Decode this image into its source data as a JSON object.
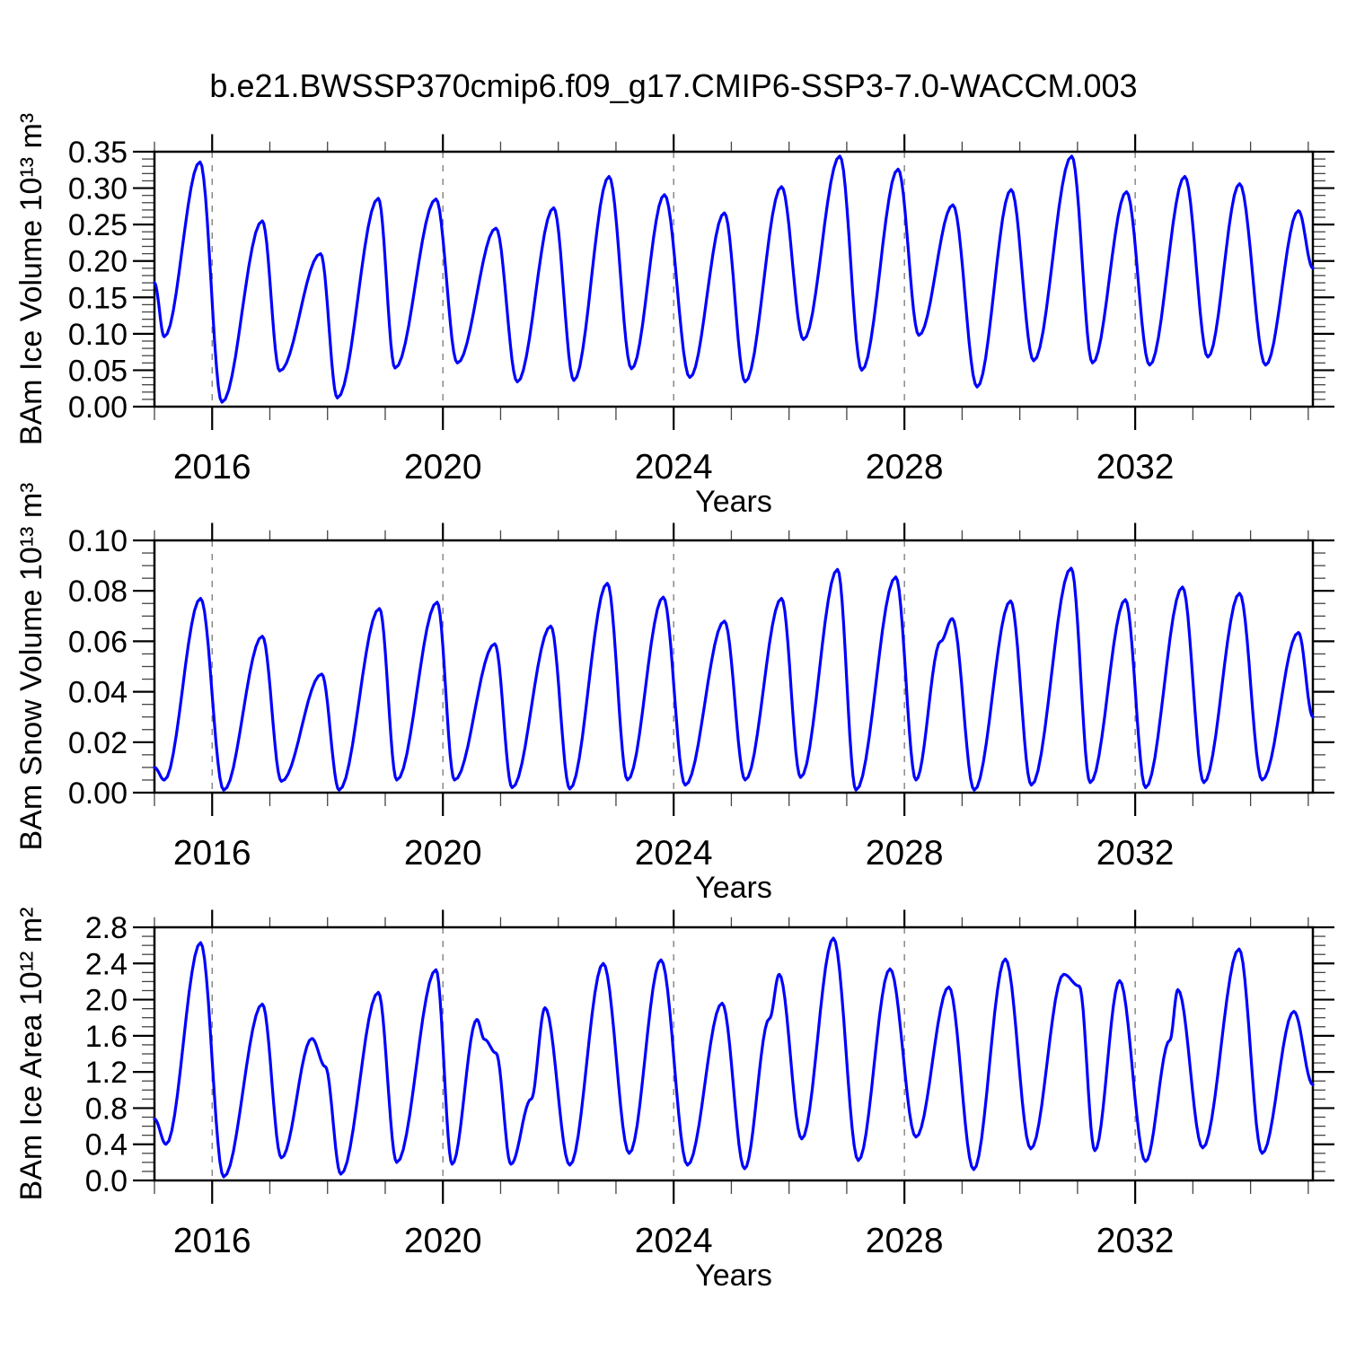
{
  "figure": {
    "title": "b.e21.BWSSP370cmip6.f09_g17.CMIP6-SSP3-7.0-WACCM.003",
    "line_color": "#0000ff",
    "grid_color": "#787878",
    "axis_color": "#000000",
    "minor_tick_color": "#555555",
    "background": "#ffffff"
  },
  "chart_data": [
    {
      "id": "ice-volume",
      "type": "line",
      "ylabel": "BAm Ice Volume 10¹³ m³",
      "xlabel": "Years",
      "ylim": [
        0,
        0.35
      ],
      "yticks": {
        "values": [
          0,
          0.05,
          0.1,
          0.15,
          0.2,
          0.25,
          0.3,
          0.35
        ],
        "labels": [
          "0.00",
          "0.05",
          "0.10",
          "0.15",
          "0.20",
          "0.25",
          "0.30",
          "0.35"
        ]
      },
      "y_minor_step": 0.01,
      "xlim": [
        2015.0,
        2035.08
      ],
      "xticks": {
        "values": [
          2016,
          2020,
          2024,
          2028,
          2032
        ],
        "labels": [
          "2016",
          "2020",
          "2024",
          "2028",
          "2032"
        ]
      },
      "x_minor_step": 1,
      "gridline_years": [
        2016,
        2020,
        2024,
        2028,
        2032
      ],
      "grid_style": "vertical-dashed",
      "legend": "none",
      "series": [
        {
          "name": "BAm Ice Volume",
          "color": "#0000ff",
          "interpolation": "seasonal-cosine",
          "points": [
            [
              2015.0,
              0.17
            ],
            [
              2015.17,
              0.096
            ],
            [
              2015.79,
              0.336
            ],
            [
              2016.17,
              0.006
            ],
            [
              2016.87,
              0.255
            ],
            [
              2017.17,
              0.049
            ],
            [
              2017.88,
              0.21
            ],
            [
              2018.17,
              0.012
            ],
            [
              2018.88,
              0.286
            ],
            [
              2019.17,
              0.053
            ],
            [
              2019.88,
              0.285
            ],
            [
              2020.25,
              0.06
            ],
            [
              2020.92,
              0.245
            ],
            [
              2021.29,
              0.034
            ],
            [
              2021.92,
              0.273
            ],
            [
              2022.27,
              0.036
            ],
            [
              2022.88,
              0.316
            ],
            [
              2023.27,
              0.052
            ],
            [
              2023.84,
              0.291
            ],
            [
              2024.28,
              0.04
            ],
            [
              2024.88,
              0.266
            ],
            [
              2025.24,
              0.034
            ],
            [
              2025.87,
              0.302
            ],
            [
              2026.25,
              0.092
            ],
            [
              2026.88,
              0.344
            ],
            [
              2027.26,
              0.05
            ],
            [
              2027.89,
              0.326
            ],
            [
              2028.25,
              0.098
            ],
            [
              2028.84,
              0.277
            ],
            [
              2029.26,
              0.027
            ],
            [
              2029.85,
              0.298
            ],
            [
              2030.24,
              0.063
            ],
            [
              2030.9,
              0.344
            ],
            [
              2031.26,
              0.06
            ],
            [
              2031.85,
              0.295
            ],
            [
              2032.25,
              0.057
            ],
            [
              2032.86,
              0.316
            ],
            [
              2033.26,
              0.068
            ],
            [
              2033.81,
              0.306
            ],
            [
              2034.26,
              0.057
            ],
            [
              2034.83,
              0.269
            ],
            [
              2035.08,
              0.19
            ]
          ]
        }
      ]
    },
    {
      "id": "snow-volume",
      "type": "line",
      "ylabel": "BAm Snow Volume 10¹³ m³",
      "xlabel": "Years",
      "ylim": [
        0,
        0.1
      ],
      "yticks": {
        "values": [
          0,
          0.02,
          0.04,
          0.06,
          0.08,
          0.1
        ],
        "labels": [
          "0.00",
          "0.02",
          "0.04",
          "0.06",
          "0.08",
          "0.10"
        ]
      },
      "y_minor_step": 0.005,
      "xlim": [
        2015.0,
        2035.08
      ],
      "xticks": {
        "values": [
          2016,
          2020,
          2024,
          2028,
          2032
        ],
        "labels": [
          "2016",
          "2020",
          "2024",
          "2028",
          "2032"
        ]
      },
      "x_minor_step": 1,
      "gridline_years": [
        2016,
        2020,
        2024,
        2028,
        2032
      ],
      "grid_style": "vertical-dashed",
      "legend": "none",
      "series": [
        {
          "name": "BAm Snow Volume",
          "color": "#0000ff",
          "interpolation": "seasonal-cosine",
          "points": [
            [
              2015.0,
              0.01
            ],
            [
              2015.17,
              0.005
            ],
            [
              2015.8,
              0.077
            ],
            [
              2016.2,
              0.001
            ],
            [
              2016.87,
              0.062
            ],
            [
              2017.2,
              0.0045
            ],
            [
              2017.9,
              0.047
            ],
            [
              2018.2,
              0.001
            ],
            [
              2018.9,
              0.073
            ],
            [
              2019.2,
              0.005
            ],
            [
              2019.9,
              0.0755
            ],
            [
              2020.2,
              0.005
            ],
            [
              2020.9,
              0.059
            ],
            [
              2021.2,
              0.002
            ],
            [
              2021.87,
              0.066
            ],
            [
              2022.2,
              0.0015
            ],
            [
              2022.85,
              0.083
            ],
            [
              2023.2,
              0.005
            ],
            [
              2023.82,
              0.0775
            ],
            [
              2024.2,
              0.003
            ],
            [
              2024.88,
              0.068
            ],
            [
              2025.24,
              0.005
            ],
            [
              2025.87,
              0.077
            ],
            [
              2026.2,
              0.006
            ],
            [
              2026.84,
              0.0885
            ],
            [
              2027.16,
              0.001
            ],
            [
              2027.85,
              0.0855
            ],
            [
              2028.2,
              0.005
            ],
            [
              2028.63,
              0.06
            ],
            [
              2028.83,
              0.069
            ],
            [
              2029.21,
              0.001
            ],
            [
              2029.84,
              0.076
            ],
            [
              2030.2,
              0.003
            ],
            [
              2030.89,
              0.089
            ],
            [
              2031.22,
              0.004
            ],
            [
              2031.83,
              0.0765
            ],
            [
              2032.18,
              0.002
            ],
            [
              2032.82,
              0.0815
            ],
            [
              2033.19,
              0.004
            ],
            [
              2033.81,
              0.079
            ],
            [
              2034.2,
              0.005
            ],
            [
              2034.83,
              0.0635
            ],
            [
              2035.08,
              0.03
            ]
          ]
        }
      ]
    },
    {
      "id": "ice-area",
      "type": "line",
      "ylabel": "BAm Ice Area 10¹² m²",
      "xlabel": "Years",
      "ylim": [
        0,
        2.8
      ],
      "yticks": {
        "values": [
          0,
          0.4,
          0.8,
          1.2,
          1.6,
          2.0,
          2.4,
          2.8
        ],
        "labels": [
          "0.0",
          "0.4",
          "0.8",
          "1.2",
          "1.6",
          "2.0",
          "2.4",
          "2.8"
        ]
      },
      "y_minor_step": 0.1,
      "xlim": [
        2015.0,
        2035.08
      ],
      "xticks": {
        "values": [
          2016,
          2020,
          2024,
          2028,
          2032
        ],
        "labels": [
          "2016",
          "2020",
          "2024",
          "2028",
          "2032"
        ]
      },
      "x_minor_step": 1,
      "gridline_years": [
        2016,
        2020,
        2024,
        2028,
        2032
      ],
      "grid_style": "vertical-dashed",
      "legend": "none",
      "series": [
        {
          "name": "BAm Ice Area",
          "color": "#0000ff",
          "interpolation": "seasonal-cosine",
          "points": [
            [
              2015.0,
              0.68
            ],
            [
              2015.2,
              0.4
            ],
            [
              2015.8,
              2.63
            ],
            [
              2016.2,
              0.04
            ],
            [
              2016.87,
              1.95
            ],
            [
              2017.2,
              0.25
            ],
            [
              2017.73,
              1.57
            ],
            [
              2017.96,
              1.26
            ],
            [
              2018.23,
              0.07
            ],
            [
              2018.88,
              2.08
            ],
            [
              2019.2,
              0.2
            ],
            [
              2019.88,
              2.33
            ],
            [
              2020.16,
              0.18
            ],
            [
              2020.59,
              1.78
            ],
            [
              2020.72,
              1.56
            ],
            [
              2020.92,
              1.41
            ],
            [
              2021.18,
              0.18
            ],
            [
              2021.53,
              0.9
            ],
            [
              2021.77,
              1.91
            ],
            [
              2022.2,
              0.17
            ],
            [
              2022.78,
              2.4
            ],
            [
              2023.23,
              0.3
            ],
            [
              2023.78,
              2.44
            ],
            [
              2024.24,
              0.17
            ],
            [
              2024.84,
              1.96
            ],
            [
              2025.23,
              0.13
            ],
            [
              2025.66,
              1.79
            ],
            [
              2025.83,
              2.28
            ],
            [
              2026.22,
              0.46
            ],
            [
              2026.77,
              2.68
            ],
            [
              2027.2,
              0.22
            ],
            [
              2027.75,
              2.34
            ],
            [
              2028.2,
              0.48
            ],
            [
              2028.77,
              2.14
            ],
            [
              2029.2,
              0.12
            ],
            [
              2029.75,
              2.45
            ],
            [
              2030.19,
              0.35
            ],
            [
              2030.76,
              2.28
            ],
            [
              2031.03,
              2.15
            ],
            [
              2031.3,
              0.33
            ],
            [
              2031.73,
              2.21
            ],
            [
              2032.18,
              0.21
            ],
            [
              2032.6,
              1.55
            ],
            [
              2032.74,
              2.11
            ],
            [
              2033.17,
              0.36
            ],
            [
              2033.8,
              2.56
            ],
            [
              2034.2,
              0.3
            ],
            [
              2034.75,
              1.87
            ],
            [
              2035.08,
              1.06
            ]
          ]
        }
      ]
    }
  ]
}
